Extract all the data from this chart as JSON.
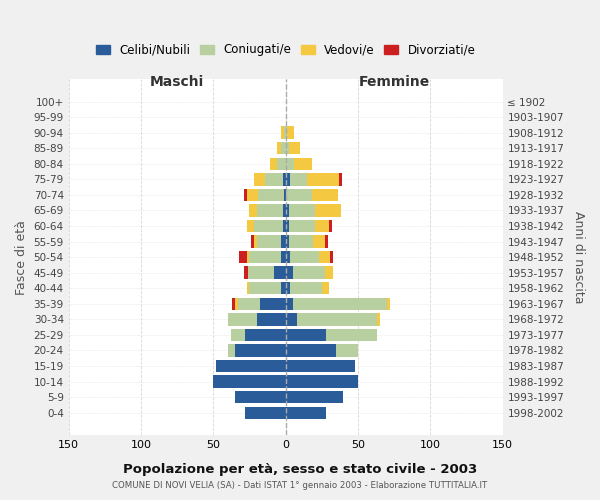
{
  "age_groups": [
    "0-4",
    "5-9",
    "10-14",
    "15-19",
    "20-24",
    "25-29",
    "30-34",
    "35-39",
    "40-44",
    "45-49",
    "50-54",
    "55-59",
    "60-64",
    "65-69",
    "70-74",
    "75-79",
    "80-84",
    "85-89",
    "90-94",
    "95-99",
    "100+"
  ],
  "birth_years": [
    "1998-2002",
    "1993-1997",
    "1988-1992",
    "1983-1987",
    "1978-1982",
    "1973-1977",
    "1968-1972",
    "1963-1967",
    "1958-1962",
    "1953-1957",
    "1948-1952",
    "1943-1947",
    "1938-1942",
    "1933-1937",
    "1928-1932",
    "1923-1927",
    "1918-1922",
    "1913-1917",
    "1908-1912",
    "1903-1907",
    "≤ 1902"
  ],
  "maschi": {
    "celibi": [
      28,
      35,
      50,
      48,
      35,
      28,
      20,
      18,
      3,
      8,
      3,
      3,
      2,
      2,
      1,
      2,
      0,
      0,
      0,
      0,
      0
    ],
    "coniugati": [
      0,
      0,
      0,
      0,
      5,
      10,
      20,
      15,
      22,
      18,
      22,
      17,
      20,
      18,
      18,
      12,
      6,
      3,
      1,
      0,
      0
    ],
    "vedovi": [
      0,
      0,
      0,
      0,
      0,
      0,
      0,
      2,
      2,
      0,
      2,
      2,
      5,
      5,
      8,
      8,
      5,
      3,
      2,
      0,
      0
    ],
    "divorziati": [
      0,
      0,
      0,
      0,
      0,
      0,
      0,
      2,
      0,
      3,
      5,
      2,
      0,
      0,
      2,
      0,
      0,
      0,
      0,
      0,
      0
    ]
  },
  "femmine": {
    "nubili": [
      28,
      40,
      50,
      48,
      35,
      28,
      8,
      5,
      3,
      5,
      3,
      2,
      2,
      2,
      0,
      3,
      0,
      0,
      0,
      0,
      0
    ],
    "coniugate": [
      0,
      0,
      0,
      0,
      15,
      35,
      55,
      65,
      22,
      22,
      20,
      17,
      18,
      18,
      18,
      12,
      6,
      2,
      1,
      0,
      0
    ],
    "vedove": [
      0,
      0,
      0,
      0,
      0,
      0,
      2,
      2,
      5,
      6,
      8,
      8,
      10,
      18,
      18,
      22,
      12,
      8,
      5,
      0,
      0
    ],
    "divorziate": [
      0,
      0,
      0,
      0,
      0,
      0,
      0,
      0,
      0,
      0,
      2,
      2,
      2,
      0,
      0,
      2,
      0,
      0,
      0,
      0,
      0
    ]
  },
  "colors": {
    "celibi": "#2b5c9a",
    "coniugati": "#b8cfa0",
    "vedovi": "#f5c842",
    "divorziati": "#cc2020"
  },
  "xlim": 150,
  "title": "Popolazione per età, sesso e stato civile - 2003",
  "subtitle": "COMUNE DI NOVI VELIA (SA) - Dati ISTAT 1° gennaio 2003 - Elaborazione TUTTITALIA.IT",
  "xlabel_left": "Maschi",
  "xlabel_right": "Femmine",
  "ylabel_left": "Fasce di età",
  "ylabel_right": "Anni di nascita",
  "legend_labels": [
    "Celibi/Nubili",
    "Coniugati/e",
    "Vedovi/e",
    "Divorziati/e"
  ],
  "bg_color": "#f0f0f0",
  "plot_bg": "#ffffff",
  "grid_color": "#cccccc"
}
